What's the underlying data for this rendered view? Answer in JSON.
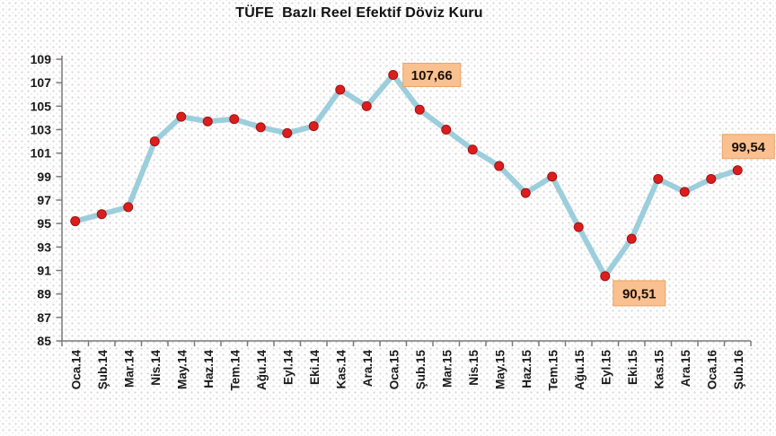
{
  "chart": {
    "title": "TÜFE  Bazlı Reel Efektif Döviz Kuru"
  },
  "chart_data": {
    "type": "line",
    "title": "TÜFE Bazlı Reel Efektif Döviz Kuru",
    "categories": [
      "Oca.14",
      "Şub.14",
      "Mar.14",
      "Nis.14",
      "May.14",
      "Haz.14",
      "Tem.14",
      "Ağu.14",
      "Eyl.14",
      "Eki.14",
      "Kas.14",
      "Ara.14",
      "Oca.15",
      "Şub.15",
      "Mar.15",
      "Nis.15",
      "May.15",
      "Haz.15",
      "Tem.15",
      "Ağu.15",
      "Eyl.15",
      "Eki.15",
      "Kas.15",
      "Ara.15",
      "Oca.16",
      "Şub.16"
    ],
    "series": [
      {
        "name": "TÜFE Bazlı Reel Efektif Döviz Kuru",
        "values": [
          95.2,
          95.8,
          96.4,
          102.0,
          104.1,
          103.7,
          103.9,
          103.2,
          102.7,
          103.3,
          106.4,
          105.0,
          107.66,
          104.7,
          103.0,
          101.3,
          99.9,
          97.6,
          99.0,
          94.7,
          90.51,
          93.7,
          98.8,
          97.7,
          98.8,
          99.54
        ]
      }
    ],
    "ylim": [
      85,
      109
    ],
    "yticks": [
      85,
      87,
      89,
      91,
      93,
      95,
      97,
      99,
      101,
      103,
      105,
      107,
      109
    ],
    "grid": false,
    "legend_position": "none",
    "annotations": [
      {
        "index": 12,
        "text": "107,66",
        "position": "right"
      },
      {
        "index": 20,
        "text": "90,51",
        "position": "below-right"
      },
      {
        "index": 25,
        "text": "99,54",
        "position": "above"
      }
    ],
    "colors": {
      "line": "#9CCEDC",
      "marker": "#DC1D1D",
      "marker_edge": "#A31111",
      "annotation_bg": "#FAC090",
      "annotation_border": "#E8A362",
      "axis": "#7a7a7a",
      "text": "#1a1a1a"
    }
  }
}
